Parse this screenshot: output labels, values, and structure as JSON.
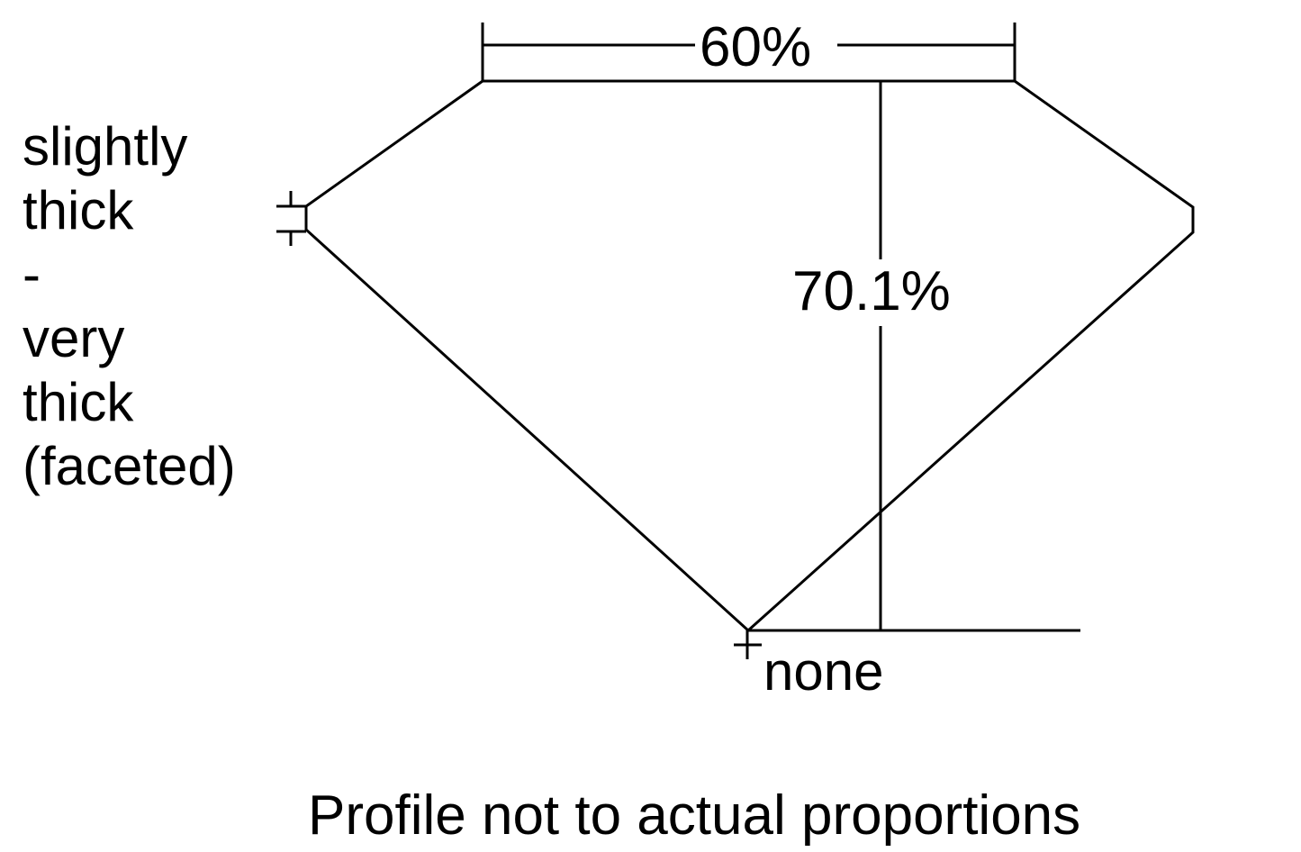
{
  "diagram": {
    "table_label": "60%",
    "depth_label": "70.1%",
    "girdle_label_lines": [
      "slightly",
      "thick",
      "-",
      "very",
      "thick",
      "(faceted)"
    ],
    "culet_label": "none",
    "caption": "Profile not to actual proportions",
    "line_color": "#000000",
    "background": "#ffffff"
  }
}
